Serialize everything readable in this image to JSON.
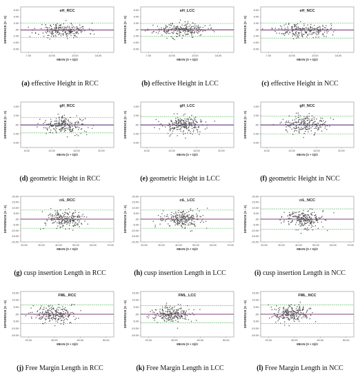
{
  "chart_data": [
    {
      "type": "scatter",
      "panel_label": "(a)",
      "caption": "effective Height in RCC",
      "title": "eH_RCC",
      "xlabel": "MEAN (S + G)/2",
      "ylabel": "DIFFERENCE (S - G)",
      "xticks": [
        "7.00",
        "10.00",
        "13.00",
        "16.00"
      ],
      "xlim": [
        6,
        18
      ],
      "yticks": [
        "6.00",
        "4.00",
        "2.00",
        ".00",
        "-2.00",
        "-4.00",
        "-6.00"
      ],
      "ylim": [
        -7,
        7
      ],
      "mean_diff": -0.2,
      "loa": [
        2.0,
        -2.4
      ],
      "n": 220,
      "x_center": 11.5,
      "x_spread": 1.6,
      "y_spread": 1.1,
      "seed": 11
    },
    {
      "type": "scatter",
      "panel_label": "(b)",
      "caption": "effective Height in LCC",
      "title": "eH_LCC",
      "xlabel": "MEAN (S + G)/2",
      "ylabel": "DIFFERENCE (S - G)",
      "xticks": [
        "7.00",
        "10.00",
        "13.00",
        "16.00"
      ],
      "xlim": [
        6,
        18
      ],
      "yticks": [
        "6.00",
        "4.00",
        "2.00",
        ".00",
        "-2.00",
        "-4.00",
        "-6.00"
      ],
      "ylim": [
        -7,
        7
      ],
      "mean_diff": -0.1,
      "loa": [
        1.9,
        -2.1
      ],
      "n": 230,
      "x_center": 11.2,
      "x_spread": 1.7,
      "y_spread": 1.0,
      "seed": 23
    },
    {
      "type": "scatter",
      "panel_label": "(c)",
      "caption": "effective Height in NCC",
      "title": "eH_NCC",
      "xlabel": "MEAN (S + G)/2",
      "ylabel": "DIFFERENCE (S - G)",
      "xticks": [
        "7.00",
        "10.00",
        "13.00",
        "16.00"
      ],
      "xlim": [
        6,
        18
      ],
      "yticks": [
        "6.00",
        "4.00",
        "2.00",
        ".00",
        "-2.00",
        "-4.00",
        "-6.00"
      ],
      "ylim": [
        -7,
        7
      ],
      "mean_diff": -0.2,
      "loa": [
        2.0,
        -2.6
      ],
      "n": 220,
      "x_center": 11.5,
      "x_spread": 1.7,
      "y_spread": 1.1,
      "seed": 37
    },
    {
      "type": "scatter",
      "panel_label": "(d)",
      "caption": "geometric Height in RCC",
      "title": "gH_RCC",
      "xlabel": "MEAN (S + G)/2",
      "ylabel": "DIFFERENCE (S - G)",
      "xticks": [
        "8.00",
        "12.00",
        "16.00",
        "20.00"
      ],
      "xlim": [
        7,
        22
      ],
      "yticks": [
        "4.00",
        "2.00",
        ".00",
        "-2.00",
        "-4.00"
      ],
      "ylim": [
        -5,
        5
      ],
      "mean_diff": -0.1,
      "loa": [
        1.6,
        -1.8
      ],
      "n": 220,
      "x_center": 14.0,
      "x_spread": 1.8,
      "y_spread": 0.9,
      "seed": 41
    },
    {
      "type": "scatter",
      "panel_label": "(e)",
      "caption": "geometric Height in LCC",
      "title": "gH_LCC",
      "xlabel": "MEAN (S + G)/2",
      "ylabel": "DIFFERENCE (S - G)",
      "xticks": [
        "8.00",
        "12.00",
        "16.00",
        "20.00"
      ],
      "xlim": [
        7,
        22
      ],
      "yticks": [
        "4.00",
        "2.00",
        ".00",
        "-2.00",
        "-4.00"
      ],
      "ylim": [
        -5,
        5
      ],
      "mean_diff": -0.1,
      "loa": [
        1.8,
        -1.9
      ],
      "n": 230,
      "x_center": 14.0,
      "x_spread": 1.8,
      "y_spread": 1.0,
      "seed": 53
    },
    {
      "type": "scatter",
      "panel_label": "(f)",
      "caption": "geometric Height in NCC",
      "title": "gH_NCC",
      "xlabel": "MEAN (S + G)/2",
      "ylabel": "DIFFERENCE (S - G)",
      "xticks": [
        "8.00",
        "12.00",
        "16.00",
        "20.00"
      ],
      "xlim": [
        7,
        22
      ],
      "yticks": [
        "4.00",
        "2.00",
        ".00",
        "-2.00",
        "-4.00"
      ],
      "ylim": [
        -5,
        5
      ],
      "mean_diff": -0.1,
      "loa": [
        1.9,
        -2.0
      ],
      "n": 220,
      "x_center": 14.0,
      "x_spread": 1.7,
      "y_spread": 1.0,
      "seed": 67
    },
    {
      "type": "scatter",
      "panel_label": "(g)",
      "caption": "cusp insertion Length in RCC",
      "title": "ciL_RCC",
      "xlabel": "MEAN (S + G)/2",
      "ylabel": "DIFFERENCE (S - G)",
      "xticks": [
        "20.00",
        "30.00",
        "40.00",
        "50.00",
        "60.00",
        "70.00"
      ],
      "xlim": [
        18,
        72
      ],
      "yticks": [
        "20.00",
        "15.00",
        "10.00",
        "5.00",
        ".00",
        "-5.00",
        "-10.00",
        "-15.00",
        "-20.00"
      ],
      "ylim": [
        -20,
        20
      ],
      "mean_diff": 0.0,
      "loa": [
        8.0,
        -8.0
      ],
      "n": 230,
      "x_center": 44.0,
      "x_spread": 6.0,
      "y_spread": 4.0,
      "seed": 71
    },
    {
      "type": "scatter",
      "panel_label": "(h)",
      "caption": "cusp insertion Length in LCC",
      "title": "ciL_LCC",
      "xlabel": "MEAN (S + G)/2",
      "ylabel": "DIFFERENCE (S - G)",
      "xticks": [
        "20.00",
        "30.00",
        "40.00",
        "50.00",
        "60.00",
        "70.00"
      ],
      "xlim": [
        18,
        72
      ],
      "yticks": [
        "20.00",
        "15.00",
        "10.00",
        "5.00",
        ".00",
        "-5.00",
        "-10.00",
        "-15.00",
        "-20.00"
      ],
      "ylim": [
        -20,
        20
      ],
      "mean_diff": 0.0,
      "loa": [
        8.0,
        -8.0
      ],
      "n": 220,
      "x_center": 42.0,
      "x_spread": 6.0,
      "y_spread": 3.8,
      "seed": 83
    },
    {
      "type": "scatter",
      "panel_label": "(i)",
      "caption": "cusp insertion Length in NCC",
      "title": "ciL_NCC",
      "xlabel": "MEAN (S + G)/2",
      "ylabel": "DIFFERENCE (S - G)",
      "xticks": [
        "20.00",
        "30.00",
        "40.00",
        "50.00",
        "60.00",
        "70.00"
      ],
      "xlim": [
        18,
        72
      ],
      "yticks": [
        "20.00",
        "15.00",
        "10.00",
        "5.00",
        ".00",
        "-5.00",
        "-10.00",
        "-15.00",
        "-20.00"
      ],
      "ylim": [
        -20,
        20
      ],
      "mean_diff": 0.0,
      "loa": [
        9.0,
        -9.0
      ],
      "n": 230,
      "x_center": 42.0,
      "x_spread": 6.0,
      "y_spread": 4.2,
      "seed": 97
    },
    {
      "type": "scatter",
      "panel_label": "(j)",
      "caption": "Free Margin Length in RCC",
      "title": "FML_RCC",
      "xlabel": "MEAN (S + G)/2",
      "ylabel": "DIFFERENCE (S - G)",
      "xticks": [
        "20.00",
        "30.00",
        "40.00",
        "50.00"
      ],
      "xlim": [
        17,
        53
      ],
      "yticks": [
        "15.00",
        "10.00",
        "5.00",
        ".00",
        "-5.00",
        "-10.00",
        "-15.00"
      ],
      "ylim": [
        -16,
        16
      ],
      "mean_diff": 0.0,
      "loa": [
        6.5,
        -6.5
      ],
      "n": 230,
      "x_center": 30.0,
      "x_spread": 4.0,
      "y_spread": 3.0,
      "seed": 101
    },
    {
      "type": "scatter",
      "panel_label": "(k)",
      "caption": "Free Margin Length in LCC",
      "title": "FML_LCC",
      "xlabel": "MEAN (S + G)/2",
      "ylabel": "DIFFERENCE (S - G)",
      "xticks": [
        "20.00",
        "30.00",
        "40.00",
        "50.00"
      ],
      "xlim": [
        17,
        53
      ],
      "yticks": [
        "15.00",
        "10.00",
        "5.00",
        ".00",
        "-5.00",
        "-10.00",
        "-15.00"
      ],
      "ylim": [
        -16,
        16
      ],
      "mean_diff": 0.0,
      "loa": [
        6.0,
        -6.0
      ],
      "n": 230,
      "x_center": 29.0,
      "x_spread": 3.8,
      "y_spread": 2.8,
      "seed": 113
    },
    {
      "type": "scatter",
      "panel_label": "(l)",
      "caption": "Free Margin Length in NCC",
      "title": "FML_NCC",
      "xlabel": "MEAN (S + G)/2",
      "ylabel": "DIFFERENCE (S - G)",
      "xticks": [
        "20.00",
        "30.00",
        "40.00",
        "50.00"
      ],
      "xlim": [
        17,
        53
      ],
      "yticks": [
        "15.00",
        "10.00",
        "5.00",
        ".00",
        "-5.00",
        "-10.00",
        "-15.00"
      ],
      "ylim": [
        -16,
        16
      ],
      "mean_diff": 0.0,
      "loa": [
        6.5,
        -6.5
      ],
      "n": 230,
      "x_center": 29.0,
      "x_spread": 3.8,
      "y_spread": 3.0,
      "seed": 127
    }
  ],
  "colors": {
    "points": "#555555",
    "mean_line": "#7a1f5c",
    "zero_line": "#3a56a8",
    "loa_line": "#4caf50"
  }
}
